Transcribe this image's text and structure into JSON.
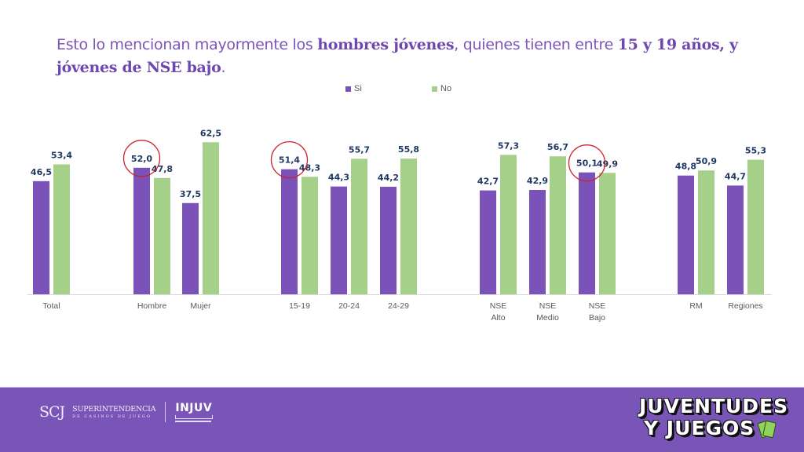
{
  "headline": {
    "part1": "Esto lo mencionan mayormente los ",
    "bold1": "hombres jóvenes",
    "part2": ", quienes tienen entre ",
    "bold2": "15 y 19 años, y jóvenes de NSE bajo",
    "part3": "."
  },
  "legend": [
    {
      "label": "Si",
      "color": "#7b52b8"
    },
    {
      "label": "No",
      "color": "#a5d08a"
    }
  ],
  "chart_data": {
    "type": "bar",
    "title": "",
    "xlabel": "",
    "ylabel": "",
    "ylim": [
      0,
      65
    ],
    "grid": false,
    "legend_position": "top-center",
    "categories": [
      "Total",
      "Hombre",
      "Mujer",
      "15-19",
      "20-24",
      "24-29",
      "NSE Alto",
      "NSE Medio",
      "NSE Bajo",
      "RM",
      "Regiones"
    ],
    "category_label_lines": [
      [
        "Total"
      ],
      [
        "Hombre"
      ],
      [
        "Mujer"
      ],
      [
        "15-19"
      ],
      [
        "20-24"
      ],
      [
        "24-29"
      ],
      [
        "NSE",
        "Alto"
      ],
      [
        "NSE",
        "Medio"
      ],
      [
        "NSE",
        "Bajo"
      ],
      [
        "RM"
      ],
      [
        "Regiones"
      ]
    ],
    "groups": [
      [
        "Total"
      ],
      [
        "Hombre",
        "Mujer"
      ],
      [
        "15-19",
        "20-24",
        "24-29"
      ],
      [
        "NSE Alto",
        "NSE Medio",
        "NSE Bajo"
      ],
      [
        "RM",
        "Regiones"
      ]
    ],
    "series": [
      {
        "name": "Si",
        "color": "#7b52b8",
        "values": [
          46.5,
          52.0,
          37.5,
          51.4,
          44.3,
          44.2,
          42.7,
          42.9,
          50.1,
          48.8,
          44.7
        ],
        "labels": [
          "46,5",
          "52,0",
          "37,5",
          "51,4",
          "44,3",
          "44,2",
          "42,7",
          "42,9",
          "50,1",
          "48,8",
          "44,7"
        ]
      },
      {
        "name": "No",
        "color": "#a5d08a",
        "values": [
          53.4,
          47.8,
          62.5,
          48.3,
          55.7,
          55.8,
          57.3,
          56.7,
          49.9,
          50.9,
          55.3
        ],
        "labels": [
          "53,4",
          "47,8",
          "62,5",
          "48,3",
          "55,7",
          "55,8",
          "57,3",
          "56,7",
          "49,9",
          "50,9",
          "55,3"
        ]
      }
    ],
    "highlighted": [
      {
        "category": "Hombre",
        "series": "Si"
      },
      {
        "category": "15-19",
        "series": "Si"
      },
      {
        "category": "NSE Bajo",
        "series": "Si"
      }
    ],
    "highlight_color": "#d0202a"
  },
  "footer": {
    "scj_mark": "SCJ",
    "scj_line1": "SUPERINTENDENCIA",
    "scj_line2": "DE CASINOS DE JUEGO",
    "injuv": "INJUV",
    "brand_line1": "JUVENTUDES",
    "brand_line2": "Y JUEGOS"
  }
}
